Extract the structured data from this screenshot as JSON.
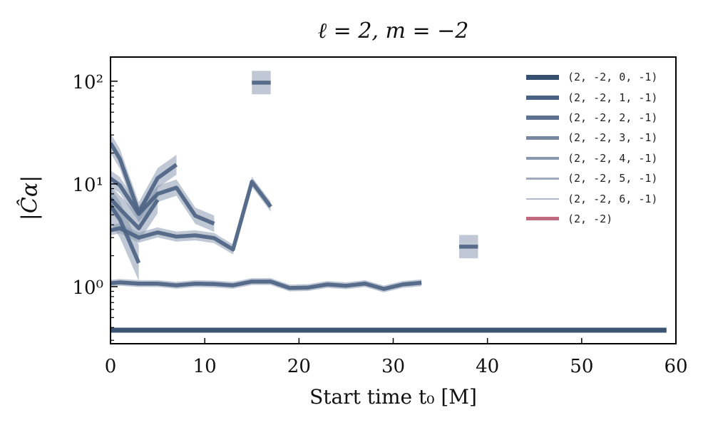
{
  "chart_data": {
    "type": "line",
    "title": "ℓ = 2, m = −2",
    "xlabel": "Start time t₀ [M]",
    "ylabel": "|Ĉα|",
    "xlim": [
      0,
      60
    ],
    "ylim": [
      0.278,
      172
    ],
    "yscale": "log",
    "xticks": [
      "0",
      "10",
      "20",
      "30",
      "40",
      "50",
      "60"
    ],
    "yticks": [
      {
        "value": 1,
        "label": "10⁰"
      },
      {
        "value": 10,
        "label": "10¹"
      },
      {
        "value": 100,
        "label": "10²"
      }
    ],
    "legend_position": "top-right",
    "series": [
      {
        "name": "(2, -2, 0, -1)",
        "color": "#34506e",
        "segments": [
          {
            "x": [
              0,
              59
            ],
            "y": [
              0.377,
              0.377
            ],
            "err": 0.02
          }
        ]
      },
      {
        "name": "(2, -2, 1, -1)",
        "color": "#4a6282",
        "segments": [
          {
            "x": [
              0,
              1,
              3,
              5,
              7,
              9,
              11,
              13,
              15,
              17,
              19,
              21,
              23,
              25,
              27,
              29,
              31,
              33
            ],
            "y": [
              1.08,
              1.1,
              1.07,
              1.07,
              1.03,
              1.07,
              1.06,
              1.03,
              1.12,
              1.12,
              0.97,
              0.98,
              1.05,
              1.02,
              1.07,
              0.95,
              1.05,
              1.09
            ],
            "err": 0.08
          }
        ]
      },
      {
        "name": "(2, -2, 2, -1)",
        "color": "#5d7290",
        "segments": [
          {
            "x": [
              0,
              1,
              3,
              5,
              7,
              9,
              11,
              13,
              15,
              17
            ],
            "y": [
              3.54,
              3.7,
              3.0,
              3.37,
              3.07,
              3.16,
              2.97,
              2.3,
              10.5,
              6.0
            ],
            "err": 0.12
          },
          {
            "x": [
              37,
              39
            ],
            "y": [
              2.45,
              2.45
            ],
            "err": 0.3
          }
        ]
      },
      {
        "name": "(2, -2, 3, -1)",
        "color": "#76879f",
        "segments": [
          {
            "x": [
              0,
              1,
              3,
              5,
              7,
              9,
              11
            ],
            "y": [
              11.3,
              9.7,
              5.1,
              8.0,
              9.2,
              4.9,
              4.1
            ],
            "err": 0.2
          },
          {
            "x": [
              15,
              17
            ],
            "y": [
              97,
              97
            ],
            "err": 0.3
          }
        ]
      },
      {
        "name": "(2, -2, 4, -1)",
        "color": "#8797ad",
        "segments": [
          {
            "x": [
              0,
              1,
              3,
              5,
              7
            ],
            "y": [
              25,
              17.5,
              5.3,
              11.4,
              15.4
            ],
            "err": 0.25
          }
        ]
      },
      {
        "name": "(2, -2, 5, -1)",
        "color": "#9caabb",
        "segments": [
          {
            "x": [
              0,
              1,
              3,
              5
            ],
            "y": [
              7.2,
              5.7,
              3.7,
              7.0
            ],
            "err": 0.35
          }
        ]
      },
      {
        "name": "(2, -2, 6, -1)",
        "color": "#b0bac8",
        "segments": [
          {
            "x": [
              0,
              1,
              3
            ],
            "y": [
              6.2,
              4.5,
              1.7
            ],
            "err": 0.5
          }
        ]
      },
      {
        "name": "(2, -2)",
        "color": "#c0697f",
        "segments": []
      }
    ]
  }
}
